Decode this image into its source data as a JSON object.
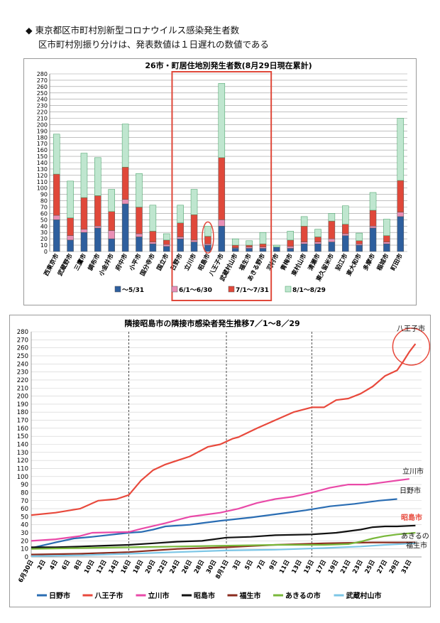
{
  "header": {
    "line1": "◆ 東京都区市町村別新型コロナウイルス感染発生者数",
    "line2": "区市町村別振り分けは、発表数値は１日遅れの数値である"
  },
  "colors": {
    "s1": "#2e5f9e",
    "s2": "#e98fb6",
    "s3": "#e0483a",
    "s4": "#bfe6cf",
    "s4_edge": "#3c9a5e",
    "highlight": "#e0483a"
  },
  "chart_data": [
    {
      "type": "bar",
      "stacked": true,
      "title": "26市・町居住地別発生者数(8月29日現在累計)",
      "categories": [
        "西東京市",
        "武蔵野市",
        "三鷹市",
        "調布市",
        "小金井市",
        "府中市",
        "小平市",
        "国分寺市",
        "国立市",
        "日野市",
        "立川市",
        "昭島市",
        "八王子市",
        "武蔵村山市",
        "福生市",
        "あきる野市",
        "羽村市",
        "青梅市",
        "東村山市",
        "清瀬市",
        "東久留米市",
        "狛江市",
        "東大和市",
        "多摩市",
        "稲城市",
        "町田市"
      ],
      "ylim": [
        0,
        280
      ],
      "yticks": [
        0,
        10,
        20,
        30,
        40,
        50,
        60,
        70,
        80,
        90,
        100,
        110,
        120,
        130,
        140,
        150,
        160,
        170,
        180,
        190,
        200,
        210,
        220,
        230,
        240,
        250,
        260,
        270,
        280
      ],
      "grid": true,
      "legend": "bottom",
      "series": [
        {
          "name": "～5/31",
          "values": [
            50,
            18,
            30,
            37,
            20,
            75,
            23,
            12,
            8,
            20,
            15,
            10,
            40,
            5,
            5,
            5,
            7,
            5,
            12,
            12,
            15,
            25,
            10,
            37,
            12,
            55
          ]
        },
        {
          "name": "6/1～6/30",
          "values": [
            7,
            7,
            5,
            3,
            13,
            7,
            5,
            3,
            3,
            3,
            3,
            2,
            10,
            1,
            2,
            2,
            0,
            3,
            3,
            3,
            5,
            3,
            2,
            3,
            3,
            7
          ]
        },
        {
          "name": "7/1～7/31",
          "values": [
            65,
            28,
            50,
            48,
            30,
            51,
            42,
            17,
            7,
            22,
            40,
            12,
            98,
            4,
            3,
            5,
            0,
            10,
            25,
            8,
            28,
            15,
            5,
            25,
            10,
            50
          ]
        },
        {
          "name": "8/1～8/29",
          "values": [
            63,
            58,
            70,
            60,
            35,
            68,
            53,
            41,
            10,
            28,
            40,
            16,
            117,
            10,
            7,
            18,
            3,
            14,
            15,
            12,
            12,
            29,
            12,
            28,
            26,
            98
          ]
        }
      ],
      "annotations": [
        {
          "type": "box",
          "from": "日野市",
          "to": "あきる野市"
        },
        {
          "type": "ellipse",
          "at": "昭島市"
        }
      ]
    },
    {
      "type": "line",
      "title": "隣接昭島市の隣接市感染者発生推移7／1～8／29",
      "x_start": "6月30日",
      "x_end": "8月29日",
      "xticks": [
        "6月30日",
        "2日",
        "4日",
        "6日",
        "8日",
        "10日",
        "12日",
        "14日",
        "16日",
        "18日",
        "20日",
        "22日",
        "24日",
        "26日",
        "28日",
        "30日",
        "8月1日",
        "3日",
        "5日",
        "7日",
        "9日",
        "11日",
        "13日",
        "15日",
        "17日",
        "19日",
        "21日",
        "23日",
        "25日",
        "27日",
        "29日",
        "31日"
      ],
      "ylim": [
        0,
        280
      ],
      "yticks": [
        0,
        10,
        20,
        30,
        40,
        50,
        60,
        70,
        80,
        90,
        100,
        110,
        120,
        130,
        140,
        150,
        160,
        170,
        180,
        190,
        200,
        210,
        220,
        230,
        240,
        250,
        260,
        270,
        280
      ],
      "grid": true,
      "vlines_at": [
        "16日",
        "8月1日",
        "15日"
      ],
      "legend": "bottom",
      "series": [
        {
          "name": "日野市",
          "color": "#2a6db3",
          "keypoints": [
            [
              0,
              11
            ],
            [
              4,
              18
            ],
            [
              7,
              23
            ],
            [
              10,
              25
            ],
            [
              16,
              30
            ],
            [
              18,
              31
            ],
            [
              20,
              34
            ],
            [
              22,
              38
            ],
            [
              26,
              40
            ],
            [
              28,
              42
            ],
            [
              31,
              45
            ],
            [
              36,
              49
            ],
            [
              40,
              53
            ],
            [
              43,
              56
            ],
            [
              45,
              58
            ],
            [
              49,
              63
            ],
            [
              53,
              66
            ],
            [
              57,
              70
            ],
            [
              60,
              72
            ]
          ]
        },
        {
          "name": "八王子市",
          "color": "#e8493c",
          "keypoints": [
            [
              0,
              52
            ],
            [
              4,
              55
            ],
            [
              8,
              60
            ],
            [
              11,
              70
            ],
            [
              14,
              72
            ],
            [
              16,
              77
            ],
            [
              18,
              95
            ],
            [
              20,
              108
            ],
            [
              22,
              115
            ],
            [
              26,
              125
            ],
            [
              29,
              137
            ],
            [
              31,
              140
            ],
            [
              33,
              147
            ],
            [
              34,
              149
            ],
            [
              37,
              160
            ],
            [
              40,
              170
            ],
            [
              43,
              180
            ],
            [
              46,
              186
            ],
            [
              48,
              186
            ],
            [
              50,
              195
            ],
            [
              52,
              197
            ],
            [
              54,
              203
            ],
            [
              56,
              212
            ],
            [
              58,
              225
            ],
            [
              60,
              232
            ],
            [
              61,
              243
            ],
            [
              62,
              255
            ],
            [
              63,
              265
            ]
          ]
        },
        {
          "name": "立川市",
          "color": "#e94aa8",
          "keypoints": [
            [
              0,
              20
            ],
            [
              4,
              22
            ],
            [
              8,
              26
            ],
            [
              10,
              30
            ],
            [
              16,
              31
            ],
            [
              18,
              35
            ],
            [
              22,
              42
            ],
            [
              26,
              50
            ],
            [
              28,
              52
            ],
            [
              31,
              55
            ],
            [
              34,
              60
            ],
            [
              37,
              67
            ],
            [
              40,
              72
            ],
            [
              43,
              75
            ],
            [
              46,
              80
            ],
            [
              49,
              86
            ],
            [
              52,
              90
            ],
            [
              55,
              90
            ],
            [
              57,
              92
            ],
            [
              60,
              95
            ],
            [
              62,
              97
            ]
          ]
        },
        {
          "name": "昭島市",
          "color": "#111111",
          "keypoints": [
            [
              0,
              12
            ],
            [
              4,
              12
            ],
            [
              8,
              13
            ],
            [
              12,
              14
            ],
            [
              16,
              15
            ],
            [
              20,
              17
            ],
            [
              24,
              19
            ],
            [
              28,
              20
            ],
            [
              32,
              24
            ],
            [
              36,
              25
            ],
            [
              40,
              27
            ],
            [
              46,
              28
            ],
            [
              50,
              30
            ],
            [
              54,
              34
            ],
            [
              56,
              37
            ],
            [
              58,
              38
            ],
            [
              60,
              38
            ],
            [
              63,
              39
            ]
          ]
        },
        {
          "name": "福生市",
          "color": "#8a2b1e",
          "keypoints": [
            [
              0,
              3
            ],
            [
              8,
              4
            ],
            [
              16,
              6
            ],
            [
              24,
              10
            ],
            [
              32,
              12
            ],
            [
              40,
              15
            ],
            [
              48,
              17
            ],
            [
              56,
              18
            ],
            [
              63,
              18
            ]
          ]
        },
        {
          "name": "あきるの市",
          "color": "#79b83b",
          "keypoints": [
            [
              0,
              10
            ],
            [
              8,
              11
            ],
            [
              16,
              12
            ],
            [
              24,
              13
            ],
            [
              32,
              14
            ],
            [
              40,
              15
            ],
            [
              48,
              15
            ],
            [
              52,
              16
            ],
            [
              54,
              19
            ],
            [
              56,
              23
            ],
            [
              58,
              26
            ],
            [
              60,
              28
            ],
            [
              63,
              30
            ]
          ]
        },
        {
          "name": "武蔵村山市",
          "color": "#7cc6e6",
          "keypoints": [
            [
              0,
              1
            ],
            [
              8,
              2
            ],
            [
              16,
              4
            ],
            [
              24,
              6
            ],
            [
              32,
              8
            ],
            [
              40,
              9
            ],
            [
              48,
              11
            ],
            [
              54,
              13
            ],
            [
              58,
              15
            ],
            [
              63,
              17
            ]
          ]
        }
      ],
      "side_labels": [
        "八王子市",
        "立川市",
        "日野市",
        "昭島市",
        "あきるの",
        "福生市"
      ],
      "annotations": [
        {
          "type": "circle",
          "at": "八王子市 8月29日"
        }
      ]
    }
  ]
}
